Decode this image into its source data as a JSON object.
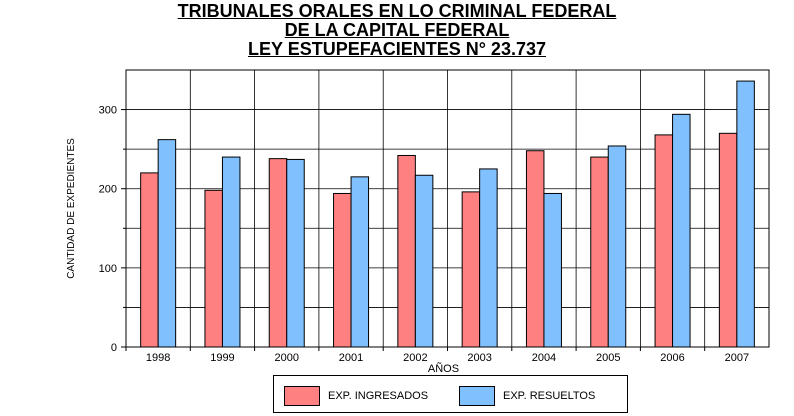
{
  "title_lines": [
    "TRIBUNALES ORALES EN LO CRIMINAL FEDERAL",
    "DE LA CAPITAL FEDERAL",
    "LEY ESTUPEFACIENTES N° 23.737"
  ],
  "chart_data": {
    "type": "bar",
    "title": "TRIBUNALES ORALES EN LO CRIMINAL FEDERAL DE LA CAPITAL FEDERAL LEY ESTUPEFACIENTES N° 23.737",
    "xlabel": "AÑOS",
    "ylabel": "CANTIDAD DE EXPEDIENTES",
    "categories": [
      "1998",
      "1999",
      "2000",
      "2001",
      "2002",
      "2003",
      "2004",
      "2005",
      "2006",
      "2007"
    ],
    "series": [
      {
        "name": "EXP. INGRESADOS",
        "color": "#ff8080",
        "values": [
          220,
          198,
          238,
          194,
          242,
          196,
          248,
          240,
          268,
          270
        ]
      },
      {
        "name": "EXP. RESUELTOS",
        "color": "#80c0ff",
        "values": [
          262,
          240,
          237,
          215,
          217,
          225,
          194,
          254,
          294,
          336
        ]
      }
    ],
    "ylim": [
      0,
      350
    ],
    "yticks": [
      0,
      100,
      200,
      300
    ],
    "grid": true,
    "legend": "bottom"
  }
}
